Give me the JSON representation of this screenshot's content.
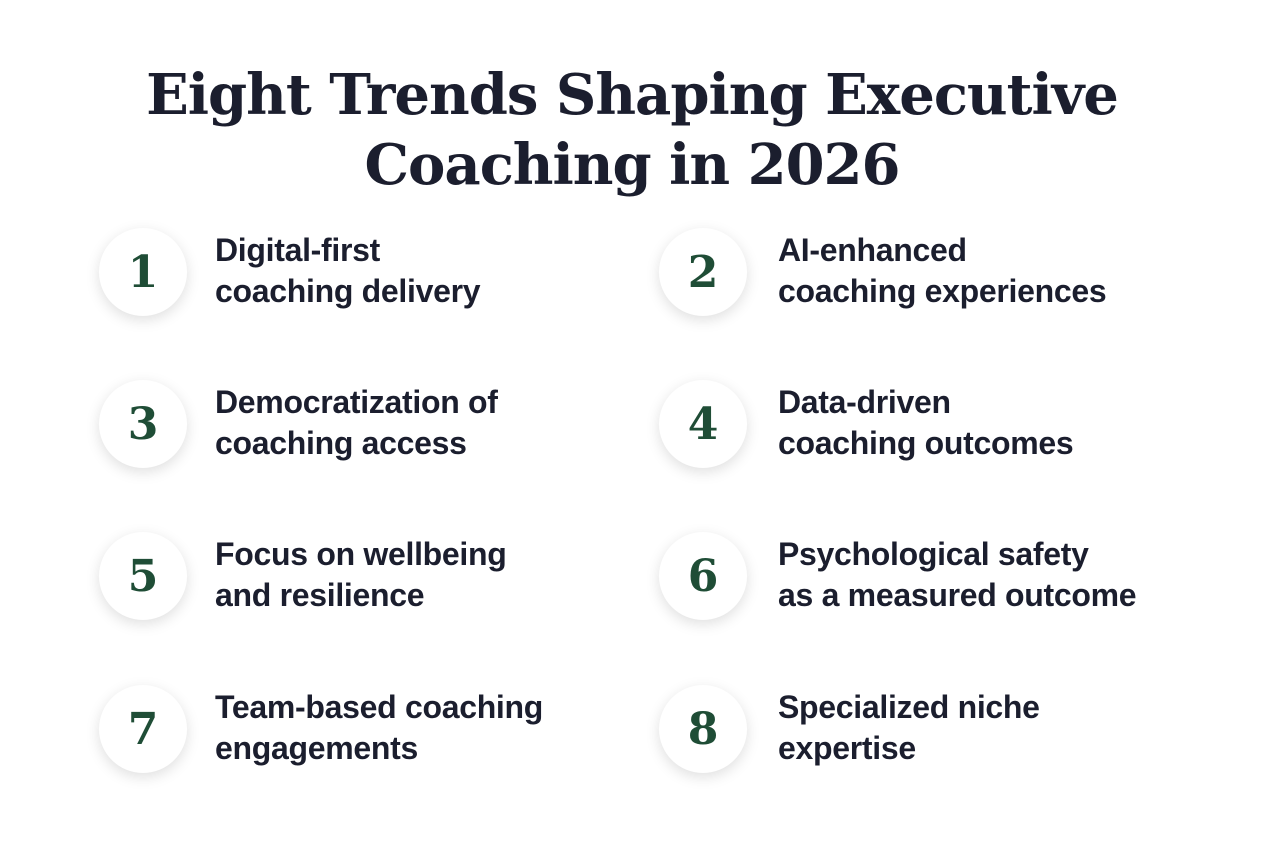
{
  "header": {
    "title": [
      "Eight Trends Shaping Executive",
      "Coaching in 2026"
    ]
  },
  "items": [
    {
      "number": 1,
      "label": [
        "Digital-first",
        "coaching delivery"
      ]
    },
    {
      "number": 2,
      "label": [
        "AI-enhanced",
        "coaching experiences"
      ]
    },
    {
      "number": 3,
      "label": [
        "Democratization of",
        "coaching access"
      ]
    },
    {
      "number": 4,
      "label": [
        "Data-driven",
        "coaching outcomes"
      ]
    },
    {
      "number": 5,
      "label": [
        "Focus on wellbeing",
        "and resilience"
      ]
    },
    {
      "number": 6,
      "label": [
        "Psychological safety",
        "as a measured outcome"
      ]
    },
    {
      "number": 7,
      "label": [
        "Team-based coaching",
        "engagements"
      ]
    },
    {
      "number": 8,
      "label": [
        "Specialized niche",
        "expertise"
      ]
    }
  ]
}
